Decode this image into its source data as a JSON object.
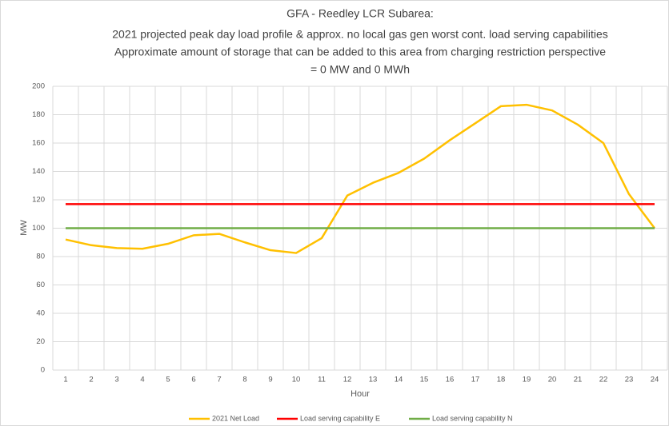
{
  "chart_data": {
    "type": "line",
    "title": [
      "GFA - Reedley LCR Subarea:",
      "2021 projected peak day load profile & approx. no local gas gen worst cont. load serving capabilities",
      "Approximate amount of storage that can be added to this area from charging restriction perspective",
      "= 0 MW and 0 MWh"
    ],
    "x_label": "Hour",
    "y_label": "MW",
    "categories": [
      1,
      2,
      3,
      4,
      5,
      6,
      7,
      8,
      9,
      10,
      11,
      12,
      13,
      14,
      15,
      16,
      17,
      18,
      19,
      20,
      21,
      22,
      23,
      24
    ],
    "series": [
      {
        "name": "2021 Net Load",
        "color": "#ffc000",
        "values": [
          92,
          88,
          86,
          85.5,
          89,
          95,
          96,
          90,
          84.5,
          82.5,
          93,
          123,
          132,
          139,
          149,
          162,
          174,
          186,
          187,
          183,
          173,
          160,
          124,
          100
        ]
      },
      {
        "name": "Load serving capability E",
        "color": "#ff0000",
        "values": [
          117,
          117,
          117,
          117,
          117,
          117,
          117,
          117,
          117,
          117,
          117,
          117,
          117,
          117,
          117,
          117,
          117,
          117,
          117,
          117,
          117,
          117,
          117,
          117
        ]
      },
      {
        "name": "Load serving capability N",
        "color": "#70ad47",
        "values": [
          100,
          100,
          100,
          100,
          100,
          100,
          100,
          100,
          100,
          100,
          100,
          100,
          100,
          100,
          100,
          100,
          100,
          100,
          100,
          100,
          100,
          100,
          100,
          100
        ]
      }
    ],
    "ylim": [
      0,
      200
    ],
    "yticks": [
      0,
      20,
      40,
      60,
      80,
      100,
      120,
      140,
      160,
      180,
      200
    ],
    "grid": true,
    "legend": "bottom"
  }
}
